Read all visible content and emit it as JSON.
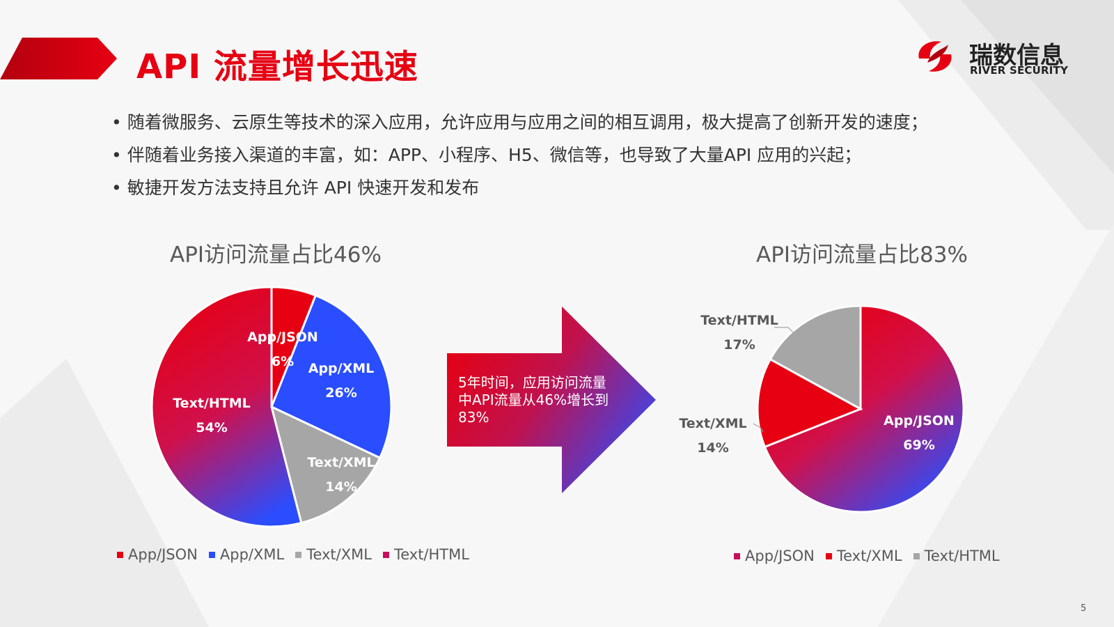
{
  "header": {
    "title": "API 流量增长迅速",
    "logo_cn": "瑞数信息",
    "logo_en": "RIVER SECURITY"
  },
  "bullets": [
    "随着微服务、云原生等技术的深入应用，允许应用与应用之间的相互调用，极大提高了创新开发的速度；",
    "伴随着业务接入渠道的丰富，如：APP、小程序、H5、微信等，也导致了大量API 应用的兴起；",
    "敏捷开发方法支持且允许 API 快速开发和发布"
  ],
  "arrow_text": "5年时间，应用访问流量中API流量从46%增长到83%",
  "page_number": "5",
  "colors": {
    "red": "#e60012",
    "blue": "#2a4dff",
    "gray": "#a6a6a6",
    "magenta": "#d1104a"
  },
  "chart_data": [
    {
      "type": "pie",
      "title": "API访问流量占比46%",
      "categories": [
        "App/JSON",
        "App/XML",
        "Text/XML",
        "Text/HTML"
      ],
      "values": [
        6,
        26,
        14,
        54
      ],
      "labels": [
        {
          "name": "App/JSON",
          "pct": "6%"
        },
        {
          "name": "App/XML",
          "pct": "26%"
        },
        {
          "name": "Text/XML",
          "pct": "14%"
        },
        {
          "name": "Text/HTML",
          "pct": "54%"
        }
      ],
      "legend": [
        "App/JSON",
        "App/XML",
        "Text/XML",
        "Text/HTML"
      ],
      "legend_placement": "bottom"
    },
    {
      "type": "pie",
      "title": "API访问流量占比83%",
      "categories": [
        "App/JSON",
        "Text/XML",
        "Text/HTML"
      ],
      "values": [
        69,
        14,
        17
      ],
      "labels": [
        {
          "name": "App/JSON",
          "pct": "69%"
        },
        {
          "name": "Text/XML",
          "pct": "14%"
        },
        {
          "name": "Text/HTML",
          "pct": "17%"
        }
      ],
      "legend": [
        "App/JSON",
        "Text/XML",
        "Text/HTML"
      ],
      "legend_placement": "bottom"
    }
  ]
}
